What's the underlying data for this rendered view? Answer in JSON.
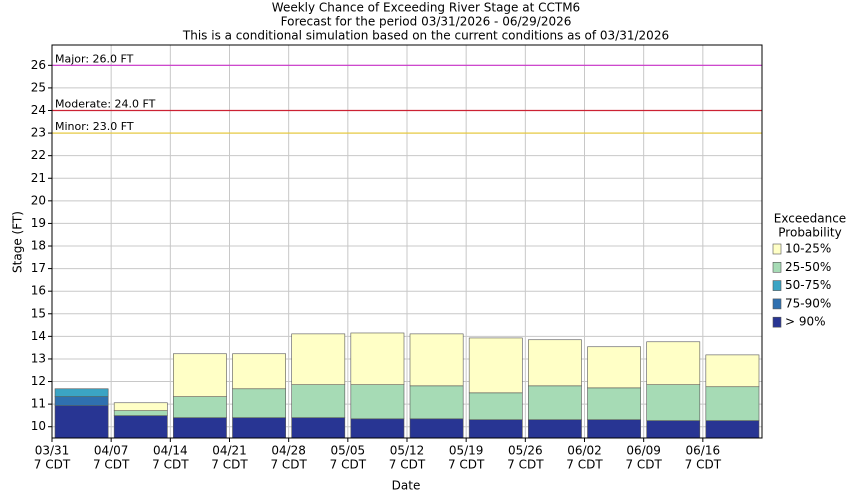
{
  "chart_data": {
    "type": "floating-bar",
    "title": "Weekly Chance of Exceeding River Stage at CCTM6",
    "subtitle": "Forecast for the period 03/31/2026 - 06/29/2026",
    "subtitle2": "This is a conditional simulation based on the current conditions as of 03/31/2026",
    "x_label": "Date",
    "y_label": "Stage (FT)",
    "categories": [
      "03/31",
      "04/07",
      "04/14",
      "04/21",
      "04/28",
      "05/05",
      "05/12",
      "05/19",
      "05/26",
      "06/02",
      "06/09",
      "06/16"
    ],
    "category_time": "7 CDT",
    "ylim": [
      9.5,
      26.9
    ],
    "yticks": [
      10,
      11,
      12,
      13,
      14,
      15,
      16,
      17,
      18,
      19,
      20,
      21,
      22,
      23,
      24,
      25,
      26
    ],
    "grid": true,
    "legend_title": [
      "Exceedance",
      "Probability"
    ],
    "series": [
      {
        "name": "> 90%",
        "color": "#283593",
        "values": [
          10.93,
          10.49,
          10.4,
          10.4,
          10.4,
          10.35,
          10.35,
          10.31,
          10.31,
          10.31,
          10.27,
          10.27
        ]
      },
      {
        "name": "75-90%",
        "color": "#2f70b0",
        "values": [
          11.33,
          10.49,
          10.4,
          10.4,
          10.4,
          10.35,
          10.35,
          10.31,
          10.31,
          10.31,
          10.27,
          10.27
        ]
      },
      {
        "name": "50-75%",
        "color": "#3ba4c4",
        "values": [
          11.68,
          10.49,
          10.4,
          10.4,
          10.4,
          10.35,
          10.35,
          10.31,
          10.31,
          10.31,
          10.27,
          10.27
        ]
      },
      {
        "name": "25-50%",
        "color": "#a6dbb5",
        "values": [
          11.68,
          10.71,
          11.33,
          11.68,
          11.86,
          11.86,
          11.81,
          11.5,
          11.81,
          11.72,
          11.86,
          11.77
        ]
      },
      {
        "name": "10-25%",
        "color": "#ffffc6",
        "values": [
          11.68,
          11.06,
          13.23,
          13.23,
          14.11,
          14.15,
          14.11,
          13.93,
          13.85,
          13.54,
          13.76,
          13.18
        ]
      }
    ],
    "thresholds": [
      {
        "label": "Major: 26.0 FT",
        "value": 26,
        "color": "#cc33cc"
      },
      {
        "label": "Moderate: 24.0 FT",
        "value": 24,
        "color": "#cc2233"
      },
      {
        "label": "Minor: 23.0 FT",
        "value": 23,
        "color": "#e8c830"
      }
    ]
  }
}
